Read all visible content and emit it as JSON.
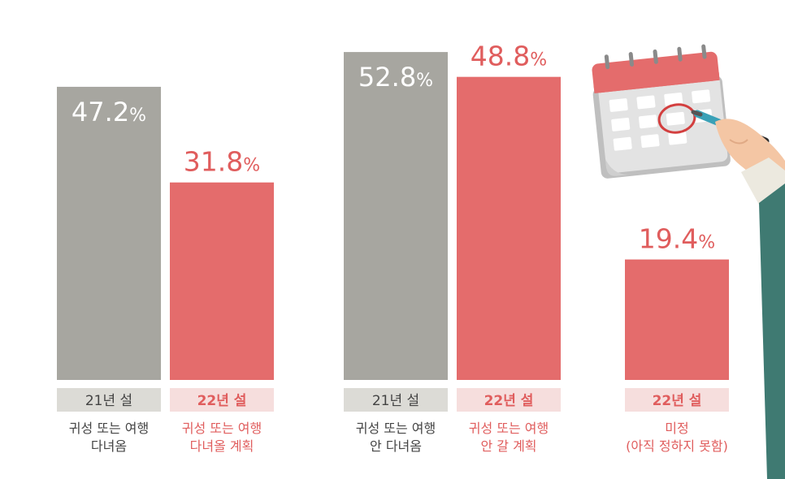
{
  "colors": {
    "gray_bar": "#a7a6a0",
    "red_bar": "#e46c6c",
    "gray_tag_bg": "#dcdbd6",
    "red_tag_bg": "#f6dedd",
    "gray_text": "#444444",
    "red_text": "#e05d5d",
    "white_text": "#ffffff"
  },
  "chart_data": {
    "type": "bar",
    "unit": "%",
    "ylim": [
      0,
      56
    ],
    "grid": false,
    "legend": "none",
    "bars": [
      {
        "value": 47.2,
        "value_label": "47.2",
        "period": "21년 설",
        "desc": [
          "귀성 또는 여행",
          "다녀옴"
        ],
        "style": "gray",
        "label_pos": "inside"
      },
      {
        "value": 31.8,
        "value_label": "31.8",
        "period": "22년 설",
        "desc": [
          "귀성 또는 여행",
          "다녀올 계획"
        ],
        "style": "red",
        "label_pos": "above"
      },
      {
        "value": 52.8,
        "value_label": "52.8",
        "period": "21년 설",
        "desc": [
          "귀성 또는 여행",
          "안 다녀옴"
        ],
        "style": "gray",
        "label_pos": "inside"
      },
      {
        "value": 48.8,
        "value_label": "48.8",
        "period": "22년 설",
        "desc": [
          "귀성 또는 여행",
          "안 갈 계획"
        ],
        "style": "red",
        "label_pos": "above"
      },
      {
        "value": 19.4,
        "value_label": "19.4",
        "period": "22년 설",
        "desc": [
          "미정",
          "(아직 정하지 못함)"
        ],
        "style": "red",
        "label_pos": "above"
      }
    ]
  }
}
